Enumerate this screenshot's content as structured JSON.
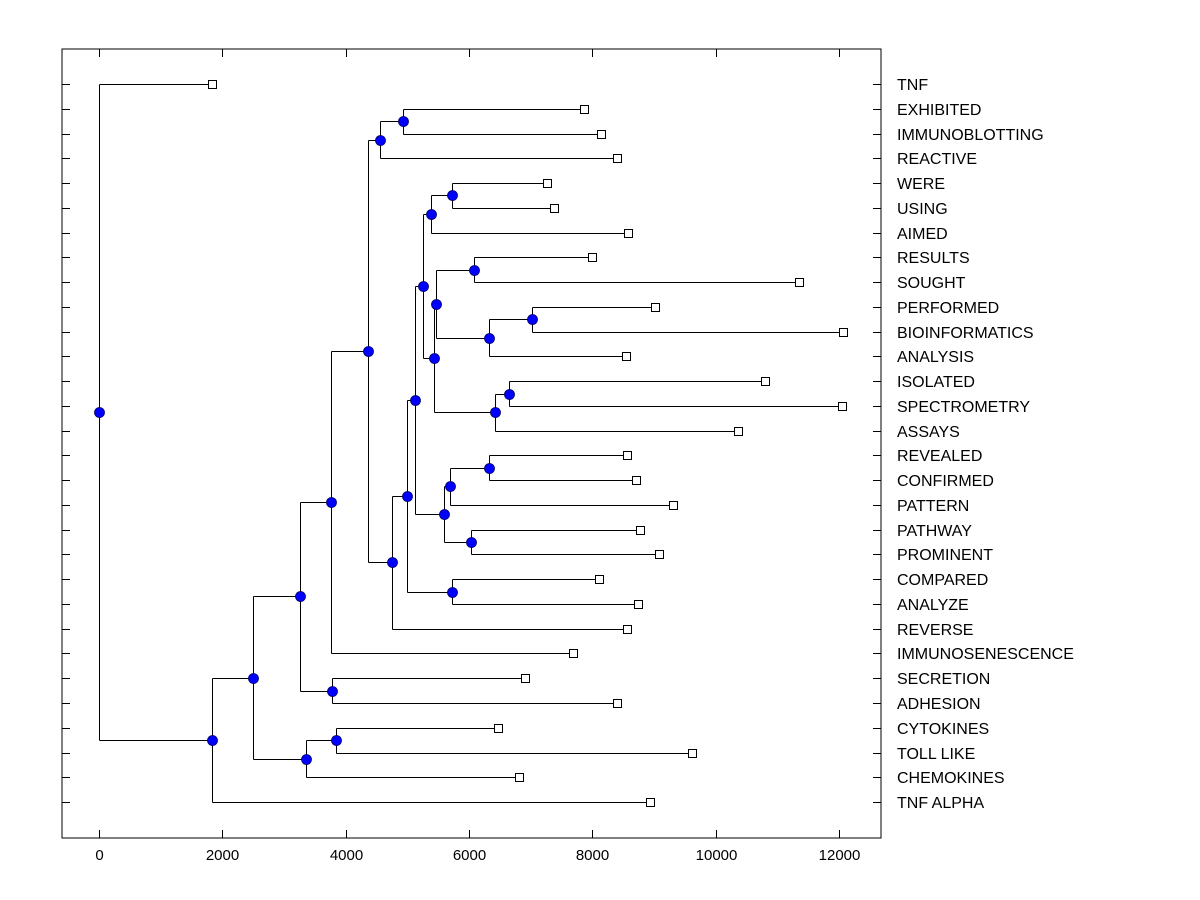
{
  "chart_data": {
    "type": "dendrogram",
    "title": "",
    "xlabel": "",
    "ylabel": "",
    "xlim": [
      -600,
      12680
    ],
    "xticks": [
      0,
      2000,
      4000,
      6000,
      8000,
      10000,
      12000
    ],
    "xtick_labels": [
      "0",
      "2000",
      "4000",
      "6000",
      "8000",
      "10000",
      "12000"
    ],
    "grid": false,
    "orientation": "left-to-right",
    "leaf_labels_position": "right",
    "colors": {
      "line": "#000000",
      "node_fill": "#0000ff",
      "leaf_fill": "#ffffff"
    },
    "leaves": [
      {
        "label": "TNF",
        "value": 1830
      },
      {
        "label": "EXHIBITED",
        "value": 7870
      },
      {
        "label": "IMMUNOBLOTTING",
        "value": 8140
      },
      {
        "label": "REACTIVE",
        "value": 8400
      },
      {
        "label": "WERE",
        "value": 7270
      },
      {
        "label": "USING",
        "value": 7380
      },
      {
        "label": "AIMED",
        "value": 8580
      },
      {
        "label": "RESULTS",
        "value": 8000
      },
      {
        "label": "SOUGHT",
        "value": 11350
      },
      {
        "label": "PERFORMED",
        "value": 9020
      },
      {
        "label": "BIOINFORMATICS",
        "value": 12070
      },
      {
        "label": "ANALYSIS",
        "value": 8550
      },
      {
        "label": "ISOLATED",
        "value": 10800
      },
      {
        "label": "SPECTROMETRY",
        "value": 12050
      },
      {
        "label": "ASSAYS",
        "value": 10360
      },
      {
        "label": "REVEALED",
        "value": 8560
      },
      {
        "label": "CONFIRMED",
        "value": 8710
      },
      {
        "label": "PATTERN",
        "value": 9310
      },
      {
        "label": "PATHWAY",
        "value": 8770
      },
      {
        "label": "PROMINENT",
        "value": 9080
      },
      {
        "label": "COMPARED",
        "value": 8110
      },
      {
        "label": "ANALYZE",
        "value": 8740
      },
      {
        "label": "REVERSE",
        "value": 8560
      },
      {
        "label": "IMMUNOSENESCENCE",
        "value": 7690
      },
      {
        "label": "SECRETION",
        "value": 6910
      },
      {
        "label": "ADHESION",
        "value": 8400
      },
      {
        "label": "CYTOKINES",
        "value": 6470
      },
      {
        "label": "TOLL LIKE",
        "value": 9620
      },
      {
        "label": "CHEMOKINES",
        "value": 6810
      },
      {
        "label": "TNF ALPHA",
        "value": 8940
      }
    ],
    "nodes": [
      {
        "id": "n1",
        "value": 4930,
        "children": [
          "L1",
          "L2"
        ]
      },
      {
        "id": "n2",
        "value": 4560,
        "children": [
          "n1",
          "L3"
        ]
      },
      {
        "id": "n3",
        "value": 5720,
        "children": [
          "L4",
          "L5"
        ]
      },
      {
        "id": "n4",
        "value": 5380,
        "children": [
          "n3",
          "L6"
        ]
      },
      {
        "id": "n5",
        "value": 6080,
        "children": [
          "L7",
          "L8"
        ]
      },
      {
        "id": "n6",
        "value": 7020,
        "children": [
          "L9",
          "L10"
        ]
      },
      {
        "id": "n7",
        "value": 6320,
        "children": [
          "n6",
          "L11"
        ]
      },
      {
        "id": "n8",
        "value": 5470,
        "children": [
          "n5",
          "n7"
        ]
      },
      {
        "id": "n9",
        "value": 6650,
        "children": [
          "L12",
          "L13"
        ]
      },
      {
        "id": "n10",
        "value": 6420,
        "children": [
          "n9",
          "L14"
        ]
      },
      {
        "id": "n11",
        "value": 5430,
        "children": [
          "n8",
          "n10"
        ]
      },
      {
        "id": "n12",
        "value": 5250,
        "children": [
          "n4",
          "n11"
        ]
      },
      {
        "id": "n13",
        "value": 6320,
        "children": [
          "L15",
          "L16"
        ]
      },
      {
        "id": "n14",
        "value": 5690,
        "children": [
          "n13",
          "L17"
        ]
      },
      {
        "id": "n15",
        "value": 6030,
        "children": [
          "L18",
          "L19"
        ]
      },
      {
        "id": "n16",
        "value": 5600,
        "children": [
          "n14",
          "n15"
        ]
      },
      {
        "id": "n17",
        "value": 5120,
        "children": [
          "n12",
          "n16"
        ]
      },
      {
        "id": "n18",
        "value": 5720,
        "children": [
          "L20",
          "L21"
        ]
      },
      {
        "id": "n19",
        "value": 4990,
        "children": [
          "n17",
          "n18"
        ]
      },
      {
        "id": "n20",
        "value": 4750,
        "children": [
          "n19",
          "L22"
        ]
      },
      {
        "id": "n21",
        "value": 4360,
        "children": [
          "n2",
          "n20"
        ]
      },
      {
        "id": "n22",
        "value": 3760,
        "children": [
          "n21",
          "L23"
        ]
      },
      {
        "id": "n23",
        "value": 3780,
        "children": [
          "L24",
          "L25"
        ]
      },
      {
        "id": "n24",
        "value": 3260,
        "children": [
          "n22",
          "n23"
        ]
      },
      {
        "id": "n25",
        "value": 3840,
        "children": [
          "L26",
          "L27"
        ]
      },
      {
        "id": "n26",
        "value": 3360,
        "children": [
          "n25",
          "L28"
        ]
      },
      {
        "id": "n27",
        "value": 2500,
        "children": [
          "n24",
          "n26"
        ]
      },
      {
        "id": "n28",
        "value": 1830,
        "children": [
          "n27",
          "L29"
        ]
      },
      {
        "id": "n29",
        "value": 0,
        "children": [
          "L0",
          "n28"
        ]
      }
    ]
  }
}
